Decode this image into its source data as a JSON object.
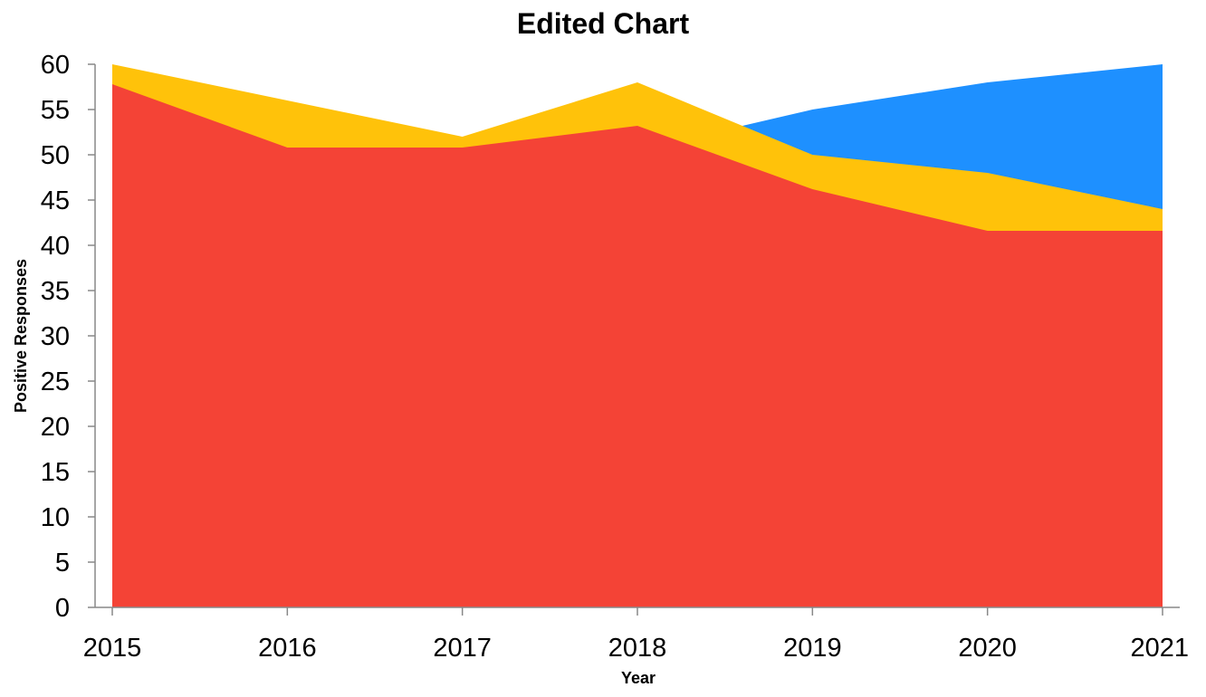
{
  "chart_data": {
    "type": "area",
    "title": "Edited Chart",
    "xlabel": "Year",
    "ylabel": "Positive Responses",
    "x": [
      2015,
      2016,
      2017,
      2018,
      2019,
      2020,
      2021
    ],
    "ylim": [
      0,
      60
    ],
    "yticks": [
      0,
      5,
      10,
      15,
      20,
      25,
      30,
      35,
      40,
      45,
      50,
      55,
      60
    ],
    "grid": false,
    "legend": "none",
    "series": [
      {
        "color": "#1e90ff",
        "values": [
          null,
          null,
          null,
          50.5,
          55,
          58,
          60
        ]
      },
      {
        "color": "#ffc20a",
        "values": [
          60,
          56,
          52,
          58,
          50,
          48,
          44
        ]
      },
      {
        "color": "#f44336",
        "values": [
          57.8,
          50.8,
          50.8,
          53.2,
          46.2,
          41.6,
          41.6
        ]
      }
    ]
  }
}
